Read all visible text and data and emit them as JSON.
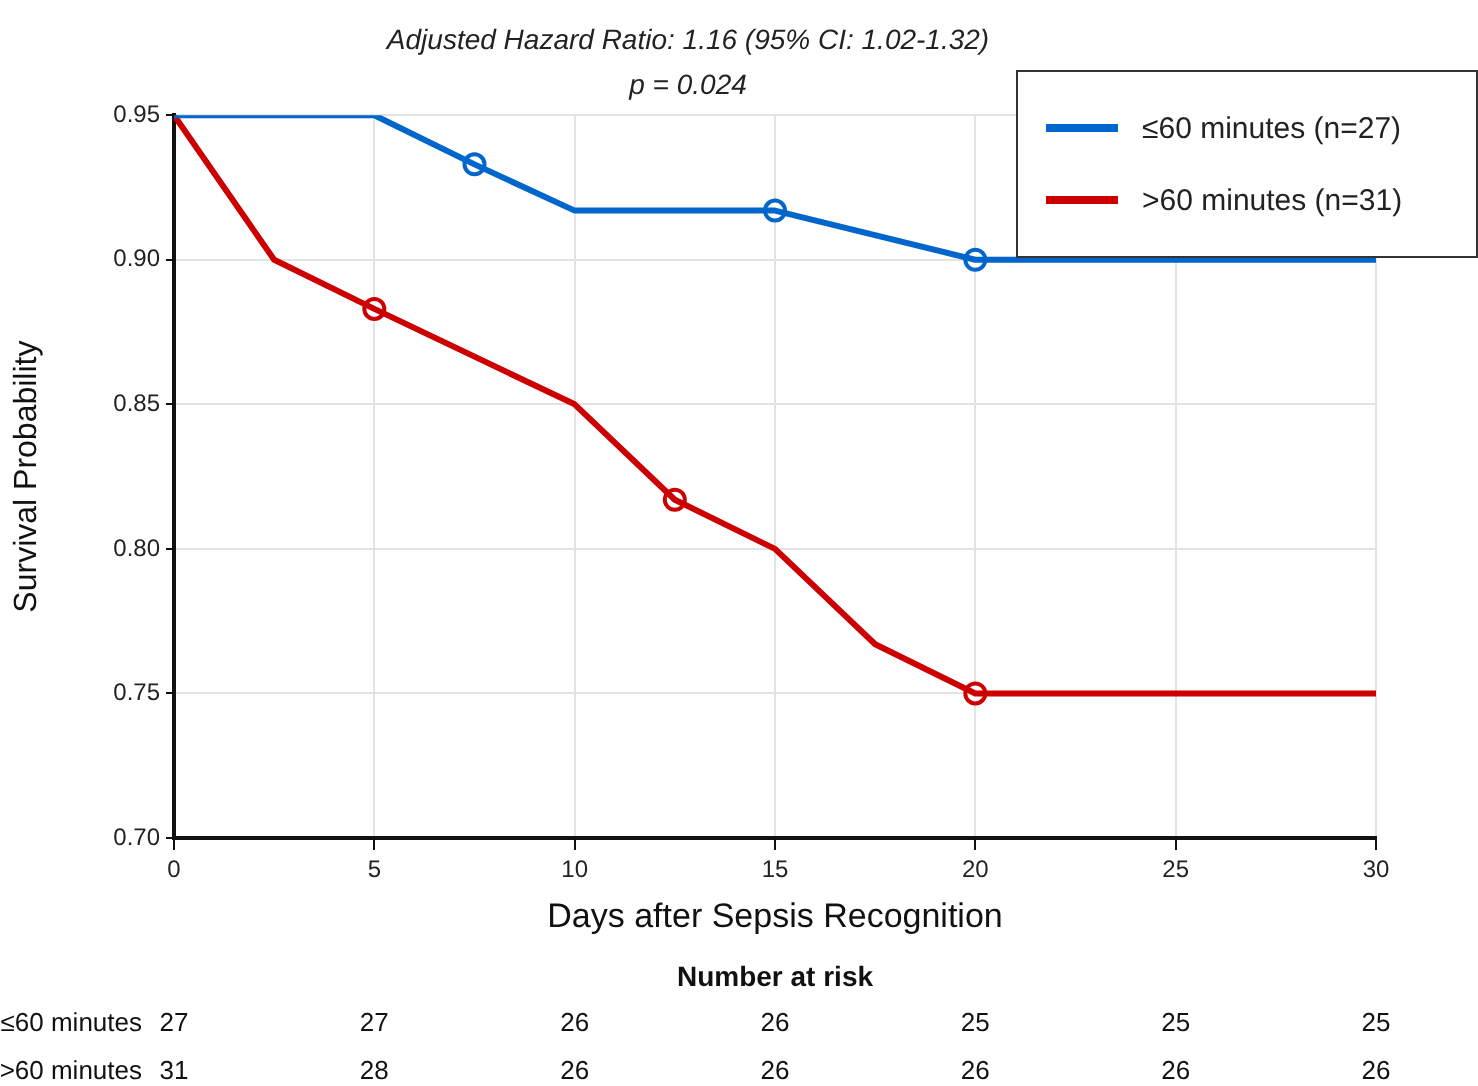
{
  "chart_data": {
    "type": "line",
    "title": "Adjusted Hazard Ratio: 1.16 (95% CI: 1.02-1.32)",
    "subtitle": "p = 0.024",
    "xlabel": "Days after Sepsis Recognition",
    "ylabel": "Survival Probability",
    "xlim": [
      0,
      30
    ],
    "xticks": [
      0,
      5,
      10,
      15,
      20,
      25,
      30
    ],
    "ylim": [
      0.7,
      0.95
    ],
    "yticks": [
      {
        "value": 0.7,
        "label": "0.70"
      },
      {
        "value": 0.75,
        "label": "0.75"
      },
      {
        "value": 0.8,
        "label": "0.80"
      },
      {
        "value": 0.85,
        "label": "0.85"
      },
      {
        "value": 0.9,
        "label": "0.90"
      },
      {
        "value": 0.95,
        "label": "0.95"
      }
    ],
    "grid": true,
    "legend": "top right",
    "line_style": "solid",
    "series": [
      {
        "name": "≤60 minutes (n=27)",
        "color": "#0066cc",
        "marker": "none",
        "x": [
          0,
          5,
          7.5,
          10,
          15,
          20,
          30
        ],
        "values": [
          0.95,
          0.95,
          0.933,
          0.917,
          0.917,
          0.9,
          0.9
        ]
      },
      {
        "name": ">60 minutes (n=31)",
        "color": "#cc0000",
        "marker": "none",
        "x": [
          0,
          2.5,
          5,
          10,
          12.5,
          15,
          17.5,
          20,
          30
        ],
        "values": [
          0.95,
          0.9,
          0.883,
          0.85,
          0.817,
          0.8,
          0.767,
          0.75,
          0.75
        ]
      },
      {
        "type": "scatter",
        "color": "#0066cc",
        "marker": "circle",
        "x": [
          7.5,
          15,
          20
        ],
        "values": [
          0.933,
          0.917,
          0.9
        ]
      },
      {
        "type": "scatter",
        "color": "#cc0000",
        "marker": "circle",
        "x": [
          5,
          12.5,
          20
        ],
        "values": [
          0.883,
          0.817,
          0.75
        ]
      }
    ],
    "annotations": [
      "Number at risk",
      "≤60 minutes",
      "27",
      "27",
      "26",
      "26",
      "25",
      "25",
      "25",
      ">60 minutes",
      "31",
      "28",
      "26",
      "26",
      "26",
      "26",
      "26"
    ]
  }
}
